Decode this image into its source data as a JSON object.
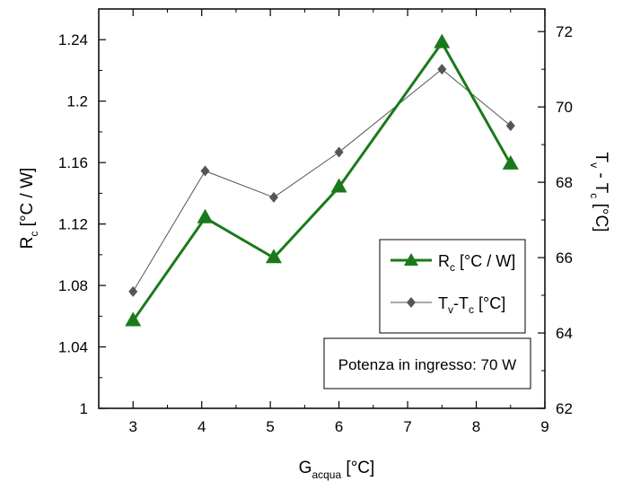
{
  "chart_data": {
    "type": "line",
    "x_ticks": [
      "3",
      "4",
      "5",
      "6",
      "7",
      "8",
      "9"
    ],
    "xlim": [
      2.5,
      9
    ],
    "ylim_left": [
      1.0,
      1.26
    ],
    "ylim_right": [
      62,
      72.6
    ],
    "y_left_ticks": [
      "1",
      "1.04",
      "1.08",
      "1.12",
      "1.16",
      "1.2",
      "1.24"
    ],
    "y_right_ticks": [
      "62",
      "64",
      "66",
      "68",
      "70",
      "72"
    ],
    "xlabel": {
      "main": "G",
      "sub": "acqua",
      "rest": " [°C]"
    },
    "ylabel_left": {
      "main": "R",
      "sub": "c",
      "rest": " [°C / W]"
    },
    "ylabel_right": {
      "p1": "T",
      "s1": "v",
      "p2": " - T",
      "s2": "c",
      "rest": " [°C]"
    },
    "series": [
      {
        "key": "rc",
        "axis": "left",
        "marker": "triangle",
        "color": "#1a7a1a",
        "x": [
          3.0,
          4.05,
          5.05,
          6.0,
          7.5,
          8.5
        ],
        "y": [
          1.057,
          1.124,
          1.098,
          1.144,
          1.238,
          1.159
        ]
      },
      {
        "key": "tvtc",
        "axis": "right",
        "marker": "diamond",
        "color": "#555555",
        "x": [
          3.0,
          4.05,
          5.05,
          6.0,
          7.5,
          8.5
        ],
        "y": [
          65.1,
          68.3,
          67.6,
          68.8,
          71.0,
          69.5
        ]
      }
    ],
    "legend": {
      "placement": "lower-right",
      "entries": [
        {
          "series": "rc",
          "main": "R",
          "sub": "c",
          "rest": " [°C / W]"
        },
        {
          "series": "tvtc",
          "p1": "T",
          "s1": "v",
          "p2": "-T",
          "s2": "c",
          "rest": " [°C]"
        }
      ]
    },
    "annotation": "Potenza in ingresso: 70 W"
  }
}
